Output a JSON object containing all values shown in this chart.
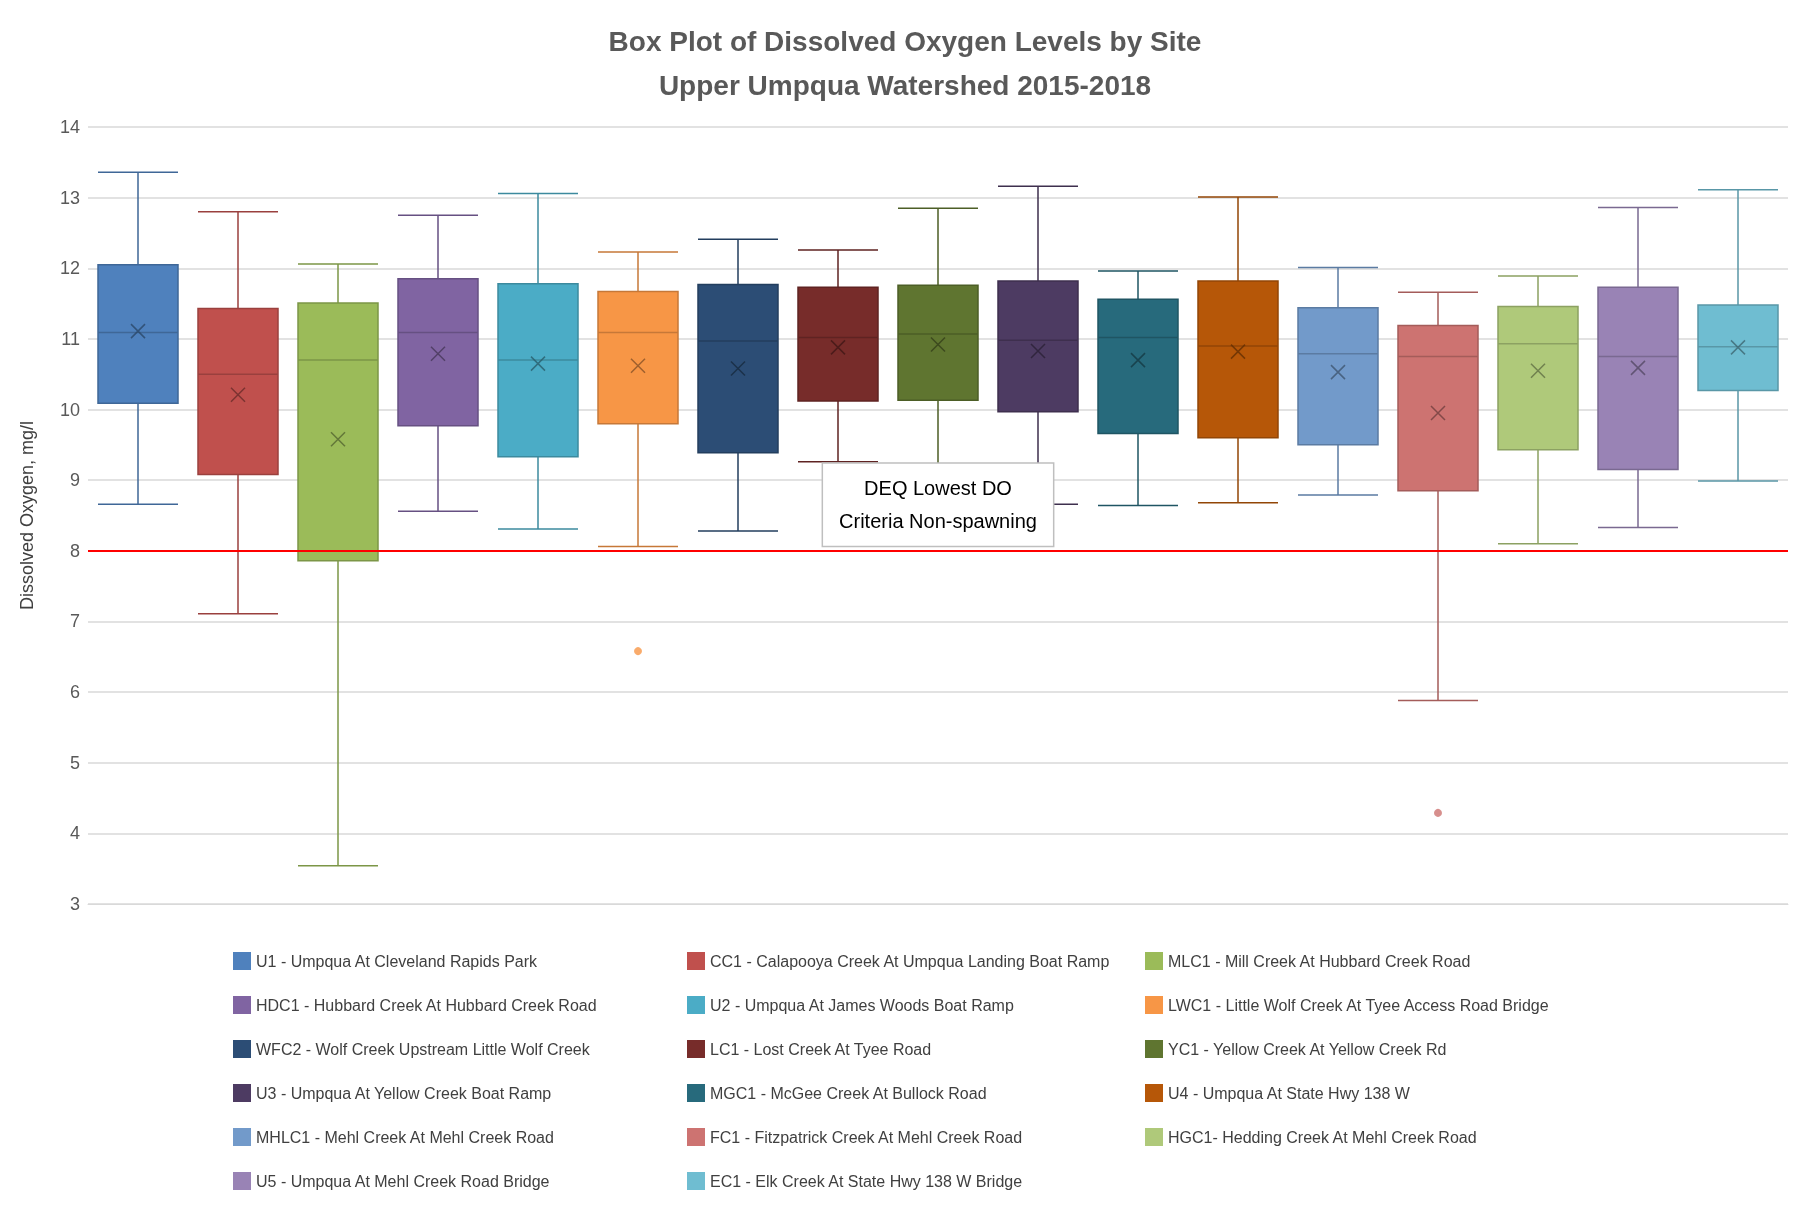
{
  "chart_data": {
    "type": "box",
    "title": "Box Plot of Dissolved Oxygen Levels by Site",
    "subtitle": "Upper Umpqua Watershed 2015-2018",
    "ylabel": "Dissolved Oxygen, mg/l",
    "categories": [
      null
    ],
    "ylim": [
      3,
      14
    ],
    "yticks": [
      3,
      4,
      5,
      6,
      7,
      8,
      9,
      10,
      11,
      12,
      13,
      14
    ],
    "grid": "y",
    "legend": "bottom",
    "marker": "cross",
    "ref_lines": [
      {
        "axis": "y",
        "value": 8,
        "label": "DEQ Lowest DO\nCriteria Non-spawning",
        "color": "#ff0000",
        "line_style": "solid"
      }
    ],
    "series": [
      {
        "name": "U1 - Umpqua At Cleveland Rapids Park",
        "color": "#4f81bd",
        "boxes": [
          {
            "low": 8.66,
            "q1": 10.09,
            "median": 11.09,
            "q3": 12.05,
            "high": 13.36,
            "mean": 11.11
          }
        ]
      },
      {
        "name": "CC1 - Calapooya Creek At Umpqua Landing Boat Ramp",
        "color": "#c0504d",
        "boxes": [
          {
            "low": 7.11,
            "q1": 9.08,
            "median": 10.5,
            "q3": 11.43,
            "high": 12.8,
            "mean": 10.21
          }
        ]
      },
      {
        "name": "MLC1 - Mill Creek At Hubbard Creek Road",
        "color": "#9bbb59",
        "boxes": [
          {
            "low": 3.54,
            "q1": 7.86,
            "median": 10.7,
            "q3": 11.51,
            "high": 12.06,
            "mean": 9.58
          }
        ]
      },
      {
        "name": "HDC1 - Hubbard Creek At Hubbard Creek Road",
        "color": "#8064a2",
        "boxes": [
          {
            "low": 8.56,
            "q1": 9.77,
            "median": 11.09,
            "q3": 11.85,
            "high": 12.75,
            "mean": 10.79
          }
        ]
      },
      {
        "name": "U2 - Umpqua At James Woods Boat Ramp",
        "color": "#4bacc6",
        "boxes": [
          {
            "low": 8.31,
            "q1": 9.33,
            "median": 10.7,
            "q3": 11.78,
            "high": 13.06,
            "mean": 10.65
          }
        ]
      },
      {
        "name": "LWC1 - Little Wolf Creek At Tyee Access Road Bridge",
        "color": "#f79646",
        "boxes": [
          {
            "low": 8.06,
            "q1": 9.8,
            "median": 11.09,
            "q3": 11.67,
            "high": 12.23,
            "mean": 10.62,
            "outliers": [
              6.58
            ]
          }
        ]
      },
      {
        "name": "WFC2 - Wolf Creek Upstream Little Wolf Creek",
        "color": "#2c4d75",
        "boxes": [
          {
            "low": 8.28,
            "q1": 9.39,
            "median": 10.97,
            "q3": 11.77,
            "high": 12.41,
            "mean": 10.58
          }
        ]
      },
      {
        "name": "LC1 - Lost Creek At Tyee Road",
        "color": "#772c2a",
        "boxes": [
          {
            "low": 9.26,
            "q1": 10.12,
            "median": 11.02,
            "q3": 11.73,
            "high": 12.26,
            "mean": 10.88
          }
        ]
      },
      {
        "name": "YC1 - Yellow Creek At Yellow Creek Rd",
        "color": "#5f7530",
        "boxes": [
          {
            "low": 9.17,
            "q1": 10.13,
            "median": 11.07,
            "q3": 11.76,
            "high": 12.85,
            "mean": 10.92
          }
        ]
      },
      {
        "name": "U3 - Umpqua At Yellow Creek Boat Ramp",
        "color": "#4d3b62",
        "boxes": [
          {
            "low": 8.66,
            "q1": 9.97,
            "median": 10.98,
            "q3": 11.82,
            "high": 13.16,
            "mean": 10.83
          }
        ]
      },
      {
        "name": "MGC1 - McGee Creek At Bullock Road",
        "color": "#276a7c",
        "boxes": [
          {
            "low": 8.64,
            "q1": 9.66,
            "median": 11.02,
            "q3": 11.56,
            "high": 11.96,
            "mean": 10.7
          }
        ]
      },
      {
        "name": "U4 - Umpqua At State Hwy 138 W",
        "color": "#b65708",
        "boxes": [
          {
            "low": 8.68,
            "q1": 9.6,
            "median": 10.9,
            "q3": 11.82,
            "high": 13.01,
            "mean": 10.82
          }
        ]
      },
      {
        "name": "MHLC1 - Mehl Creek At Mehl Creek Road",
        "color": "#729aca",
        "boxes": [
          {
            "low": 8.79,
            "q1": 9.5,
            "median": 10.79,
            "q3": 11.44,
            "high": 12.01,
            "mean": 10.53
          }
        ]
      },
      {
        "name": "FC1 - Fitzpatrick Creek At Mehl Creek Road",
        "color": "#cd7371",
        "boxes": [
          {
            "low": 5.88,
            "q1": 8.85,
            "median": 10.75,
            "q3": 11.19,
            "high": 11.66,
            "mean": 9.95,
            "outliers": [
              4.29
            ]
          }
        ]
      },
      {
        "name": "HGC1- Hedding Creek At Mehl Creek Road",
        "color": "#afc97a",
        "boxes": [
          {
            "low": 8.1,
            "q1": 9.43,
            "median": 10.93,
            "q3": 11.46,
            "high": 11.89,
            "mean": 10.55
          }
        ]
      },
      {
        "name": "U5 - Umpqua At Mehl Creek Road Bridge",
        "color": "#9983b5",
        "boxes": [
          {
            "low": 8.33,
            "q1": 9.15,
            "median": 10.75,
            "q3": 11.73,
            "high": 12.86,
            "mean": 10.59
          }
        ]
      },
      {
        "name": "EC1 - Elk Creek At State Hwy 138 W Bridge",
        "color": "#6fbdd1",
        "boxes": [
          {
            "low": 8.99,
            "q1": 10.27,
            "median": 10.89,
            "q3": 11.48,
            "high": 13.11,
            "mean": 10.88
          }
        ]
      }
    ]
  }
}
